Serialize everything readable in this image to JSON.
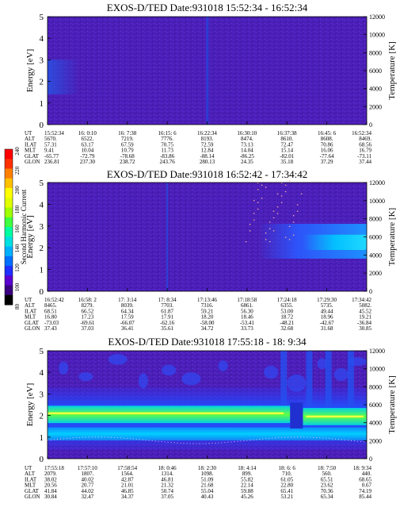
{
  "page_title": "EXOS-D/TED three-panel energy spectrogram",
  "colorbar": {
    "label": "Second Harmonic Current",
    "ticks": [
      "80",
      "100",
      "120",
      "140",
      "160",
      "180",
      "200",
      "220",
      "240"
    ],
    "colors": [
      "#000000",
      "#3a0080",
      "#5a00d0",
      "#2030ff",
      "#0070ff",
      "#00b0ff",
      "#00e0e0",
      "#00ffa0",
      "#40ff40",
      "#a0ff00",
      "#e0ff00",
      "#ffff00",
      "#ffc000",
      "#ff8000",
      "#ff3000",
      "#ff0000"
    ]
  },
  "panels": [
    {
      "title": "EXOS-D/TED   Date:931018   15:52:34 - 16:52:34",
      "ylabel_left": "Energy [eV]",
      "ylabel_right": "Temperature [K]",
      "yticks_left": [
        "0",
        "1",
        "2",
        "3",
        "4",
        "5"
      ],
      "yticks_right": [
        "0",
        "2000",
        "4000",
        "6000",
        "8000",
        "10000",
        "12000"
      ],
      "rows": [
        {
          "label": "UT",
          "values": [
            "15:52:34",
            "16: 0:10",
            "16: 7:38",
            "16:15: 6",
            "16:22:34",
            "16:30:10",
            "16:37:38",
            "16:45: 6",
            "16:52:34"
          ]
        },
        {
          "label": "ALT",
          "values": [
            "5670.",
            "6522.",
            "7219.",
            "7776.",
            "8193.",
            "8474.",
            "8610.",
            "8608.",
            "8469."
          ]
        },
        {
          "label": "ILAT",
          "values": [
            "57.31",
            "63.17",
            "67.59",
            "70.75",
            "72.59",
            "73.13",
            "72.47",
            "70.86",
            "68.56"
          ]
        },
        {
          "label": "MLT",
          "values": [
            "9.41",
            "10.04",
            "10.79",
            "11.73",
            "12.84",
            "14.04",
            "15.14",
            "16.06",
            "16.79"
          ]
        },
        {
          "label": "GLAT",
          "values": [
            "-65.77",
            "-72.79",
            "-78.68",
            "-83.86",
            "-88.14",
            "-86.25",
            "-82.01",
            "-77.64",
            "-73.11"
          ]
        },
        {
          "label": "GLON",
          "values": [
            "236.81",
            "237.30",
            "238.72",
            "243.76",
            "280.13",
            "24.35",
            "35.18",
            "37.29",
            "37.44"
          ]
        }
      ]
    },
    {
      "title": "EXOS-D/TED   Date:931018   16:52:42 - 17:34:42",
      "ylabel_left": "Energy [eV]",
      "ylabel_right": "Temperature [K]",
      "yticks_left": [
        "0",
        "1",
        "2",
        "3",
        "4",
        "5"
      ],
      "yticks_right": [
        "0",
        "2000",
        "4000",
        "6000",
        "8000",
        "10000",
        "12000"
      ],
      "rows": [
        {
          "label": "UT",
          "values": [
            "16:52:42",
            "16:58: 2",
            "17: 3:14",
            "17: 8:34",
            "17:13:46",
            "17:18:58",
            "17:24:18",
            "17:29:30",
            "17:34:42"
          ]
        },
        {
          "label": "ALT",
          "values": [
            "8465.",
            "8279.",
            "8039.",
            "7703.",
            "7316.",
            "6861.",
            "6355.",
            "5735.",
            "5082."
          ]
        },
        {
          "label": "ILAT",
          "values": [
            "68.51",
            "66.52",
            "64.34",
            "61.87",
            "59.21",
            "56.30",
            "53.00",
            "49.44",
            "45.52"
          ]
        },
        {
          "label": "MLT",
          "values": [
            "16.80",
            "17.23",
            "17.59",
            "17.91",
            "18.20",
            "18.46",
            "18.72",
            "18.96",
            "19.21"
          ]
        },
        {
          "label": "GLAT",
          "values": [
            "-73.03",
            "-69.61",
            "-66.07",
            "-62.16",
            "-58.00",
            "-53.41",
            "-48.21",
            "-42.67",
            "-36.84"
          ]
        },
        {
          "label": "GLON",
          "values": [
            "37.43",
            "37.03",
            "36.41",
            "35.61",
            "34.72",
            "33.73",
            "32.68",
            "31.68",
            "30.85"
          ]
        }
      ]
    },
    {
      "title": "EXOS-D/TED   Date:931018   17:55:18 - 18: 9:34",
      "ylabel_left": "Energy [eV]",
      "ylabel_right": "Temperature [K]",
      "yticks_left": [
        "0",
        "1",
        "2",
        "3",
        "4",
        "5"
      ],
      "yticks_right": [
        "0",
        "2000",
        "4000",
        "6000",
        "8000",
        "10000",
        "12000"
      ],
      "rows": [
        {
          "label": "UT",
          "values": [
            "17:55:18",
            "17:57:10",
            "17:58:54",
            "18: 0:46",
            "18: 2:30",
            "18: 4:14",
            "18: 6: 6",
            "18: 7:50",
            "18: 9:34"
          ]
        },
        {
          "label": "ALT",
          "values": [
            "2079.",
            "1807.",
            "1564.",
            "1314.",
            "1098.",
            "899.",
            "710.",
            "560.",
            "440."
          ]
        },
        {
          "label": "ILAT",
          "values": [
            "38.02",
            "40.02",
            "42.87",
            "46.81",
            "51.09",
            "55.82",
            "61.05",
            "65.51",
            "68.65"
          ]
        },
        {
          "label": "MLT",
          "values": [
            "20.56",
            "20.77",
            "21.01",
            "21.32",
            "21.68",
            "22.14",
            "22.80",
            "23.62",
            "0.67"
          ]
        },
        {
          "label": "GLAT",
          "values": [
            "41.84",
            "44.02",
            "46.85",
            "50.74",
            "55.04",
            "59.88",
            "65.41",
            "70.36",
            "74.19"
          ]
        },
        {
          "label": "GLON",
          "values": [
            "30.84",
            "32.47",
            "34.37",
            "37.05",
            "40.43",
            "45.26",
            "53.21",
            "65.34",
            "85.44"
          ]
        }
      ]
    }
  ],
  "chart_data": [
    {
      "type": "heatmap",
      "title": "EXOS-D/TED   Date:931018   15:52:34 - 16:52:34",
      "x_ticks": [
        "15:52:34",
        "16: 0:10",
        "16: 7:38",
        "16:15: 6",
        "16:22:34",
        "16:30:10",
        "16:37:38",
        "16:45: 6",
        "16:52:34"
      ],
      "ylabel": "Energy [eV]",
      "ylim": [
        0,
        5
      ],
      "y2label": "Temperature [K]",
      "y2lim": [
        0,
        12000
      ],
      "color_scale": {
        "label": "Second Harmonic Current",
        "range": [
          80,
          240
        ]
      },
      "features": [
        {
          "desc": "mostly low background ~110",
          "energy": [
            0,
            5
          ],
          "level": 110
        },
        {
          "desc": "faint enhancement near start",
          "x_range": [
            "15:52:34",
            "15:58:00"
          ],
          "energy": [
            1.5,
            3.0
          ],
          "level": 125
        },
        {
          "desc": "vertical stripe",
          "x": "16:22:34",
          "energy": [
            0,
            5
          ],
          "level": 130
        }
      ]
    },
    {
      "type": "heatmap",
      "title": "EXOS-D/TED   Date:931018   16:52:42 - 17:34:42",
      "x_ticks": [
        "16:52:42",
        "16:58: 2",
        "17: 3:14",
        "17: 8:34",
        "17:13:46",
        "17:18:58",
        "17:24:18",
        "17:29:30",
        "17:34:42"
      ],
      "ylabel": "Energy [eV]",
      "ylim": [
        0,
        5
      ],
      "y2label": "Temperature [K]",
      "y2lim": [
        0,
        12000
      ],
      "color_scale": {
        "label": "Second Harmonic Current",
        "range": [
          80,
          240
        ]
      },
      "features": [
        {
          "desc": "background ~110",
          "energy": [
            0,
            5
          ],
          "level": 110
        },
        {
          "desc": "vertical stripe",
          "x": "17: 8:34",
          "energy": [
            0,
            5
          ],
          "level": 130
        },
        {
          "desc": "enhancement band late in pass",
          "x_range": [
            "17:18:58",
            "17:34:42"
          ],
          "energy": [
            1.5,
            3.0
          ],
          "level": 150
        }
      ]
    },
    {
      "type": "heatmap",
      "title": "EXOS-D/TED   Date:931018   17:55:18 - 18: 9:34",
      "x_ticks": [
        "17:55:18",
        "17:57:10",
        "17:58:54",
        "18: 0:46",
        "18: 2:30",
        "18: 4:14",
        "18: 6: 6",
        "18: 7:50",
        "18: 9:34"
      ],
      "ylabel": "Energy [eV]",
      "ylim": [
        0,
        5
      ],
      "y2label": "Temperature [K]",
      "y2lim": [
        0,
        12000
      ],
      "color_scale": {
        "label": "Second Harmonic Current",
        "range": [
          80,
          240
        ]
      },
      "features": [
        {
          "desc": "intense band",
          "energy": [
            1.7,
            2.4
          ],
          "level": 190
        },
        {
          "desc": "secondary band",
          "energy": [
            0.9,
            1.4
          ],
          "level": 160
        },
        {
          "desc": "broad enhancement",
          "energy": [
            0.5,
            3.2
          ],
          "level": 140
        }
      ]
    }
  ]
}
